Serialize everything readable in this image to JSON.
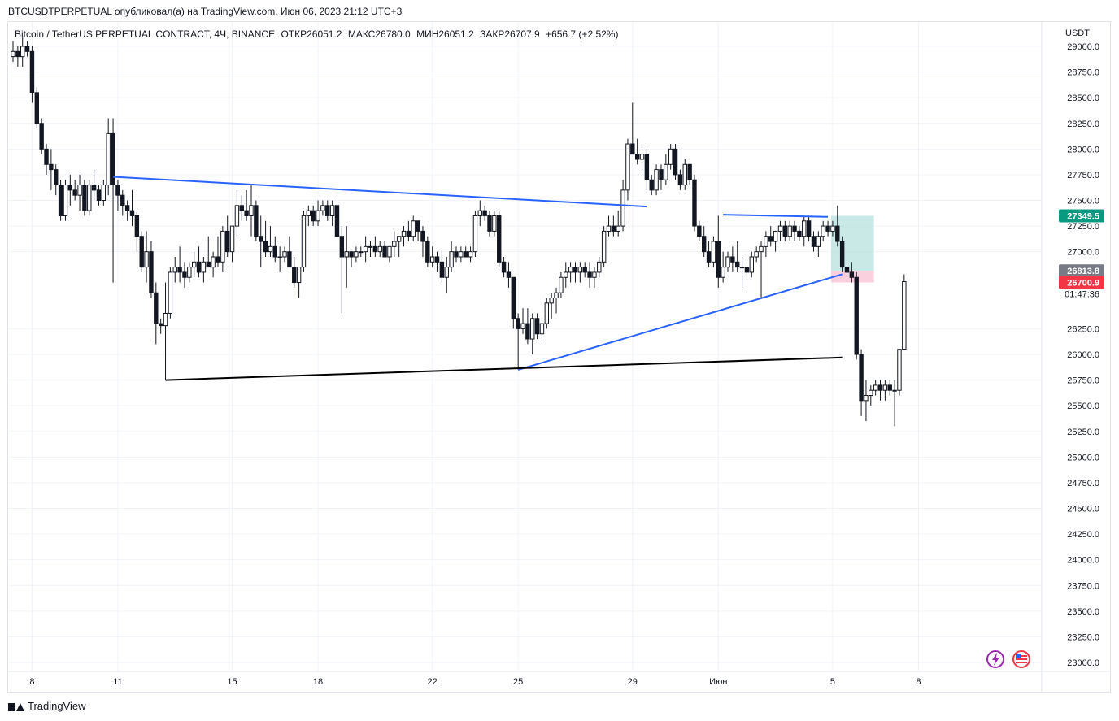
{
  "header": {
    "publish_line": "BTCUSDTPERPETUAL опубликовал(а) на TradingView.com, Июн 06, 2023 21:12 UTC+3"
  },
  "legend": {
    "symbol": "Bitcoin / TetherUS PERPETUAL CONTRACT, 4Ч, BINANCE",
    "open": "ОТКР26051.2",
    "high": "МАКС26780.0",
    "low": "МИН26051.2",
    "close": "ЗАКР26707.9",
    "change": "+656.7 (+2.52%)"
  },
  "footer": {
    "brand": "TradingView"
  },
  "colors": {
    "bull_candle": "#ffffff",
    "bear_candle": "#131722",
    "trend_blue": "#2962ff",
    "trend_black": "#000000",
    "target_zone": "#b2dfdb",
    "stop_zone": "#f8bbd0",
    "green_label": "#089981",
    "gray_label": "#787b86",
    "red_label": "#f23645",
    "grid": "#f0f3fa"
  },
  "icons": [
    "lightning-icon",
    "us-flag-icon"
  ],
  "chart_data": {
    "type": "candlestick",
    "currency_label": "USDT",
    "ylim": [
      23000,
      29000
    ],
    "y_ticks": [
      {
        "v": 29000,
        "label": "29000.0"
      },
      {
        "v": 28750,
        "label": "28750.0"
      },
      {
        "v": 28500,
        "label": "28500.0"
      },
      {
        "v": 28250,
        "label": "28250.0"
      },
      {
        "v": 28000,
        "label": "28000.0"
      },
      {
        "v": 27750,
        "label": "27750.0"
      },
      {
        "v": 27500,
        "label": "27500.0"
      },
      {
        "v": 27250,
        "label": "27250.0"
      },
      {
        "v": 27000,
        "label": "27000.0"
      },
      {
        "v": 26250,
        "label": "26250.0"
      },
      {
        "v": 26000,
        "label": "26000.0"
      },
      {
        "v": 25750,
        "label": "25750.0"
      },
      {
        "v": 25500,
        "label": "25500.0"
      },
      {
        "v": 25250,
        "label": "25250.0"
      },
      {
        "v": 25000,
        "label": "25000.0"
      },
      {
        "v": 24750,
        "label": "24750.0"
      },
      {
        "v": 24500,
        "label": "24500.0"
      },
      {
        "v": 24250,
        "label": "24250.0"
      },
      {
        "v": 24000,
        "label": "24000.0"
      },
      {
        "v": 23750,
        "label": "23750.0"
      },
      {
        "v": 23500,
        "label": "23500.0"
      },
      {
        "v": 23250,
        "label": "23250.0"
      },
      {
        "v": 23000,
        "label": "23000.0"
      }
    ],
    "x_ticks": [
      {
        "i": 4,
        "label": "8"
      },
      {
        "i": 22,
        "label": "11"
      },
      {
        "i": 46,
        "label": "15"
      },
      {
        "i": 64,
        "label": "18"
      },
      {
        "i": 88,
        "label": "22"
      },
      {
        "i": 106,
        "label": "25"
      },
      {
        "i": 130,
        "label": "29"
      },
      {
        "i": 148,
        "label": "Июн"
      },
      {
        "i": 172,
        "label": "5"
      },
      {
        "i": 190,
        "label": "8"
      }
    ],
    "price_labels": [
      {
        "v": 27349.5,
        "label": "27349.5",
        "style": "green"
      },
      {
        "v": 26813.8,
        "label": "26813.8",
        "style": "gray"
      },
      {
        "v": 26707.9,
        "label": "26707.9",
        "style": "plain"
      },
      {
        "v": 26590,
        "label": "01:47:36",
        "style": "plain"
      },
      {
        "v": 26700.9,
        "label": "26700.9",
        "style": "red"
      }
    ],
    "candles": [
      [
        28900,
        29050,
        28850,
        28950
      ],
      [
        28950,
        29000,
        28800,
        28900
      ],
      [
        28900,
        29100,
        28800,
        29000
      ],
      [
        29000,
        29050,
        28900,
        28950
      ],
      [
        28950,
        29000,
        28450,
        28550
      ],
      [
        28550,
        28600,
        28200,
        28250
      ],
      [
        28250,
        28300,
        27950,
        28000
      ],
      [
        28000,
        28050,
        27750,
        27850
      ],
      [
        27850,
        28000,
        27600,
        27800
      ],
      [
        27800,
        27850,
        27550,
        27650
      ],
      [
        27650,
        27700,
        27300,
        27350
      ],
      [
        27350,
        27700,
        27300,
        27650
      ],
      [
        27650,
        27750,
        27450,
        27600
      ],
      [
        27600,
        27700,
        27500,
        27550
      ],
      [
        27550,
        27750,
        27400,
        27650
      ],
      [
        27650,
        27700,
        27350,
        27400
      ],
      [
        27400,
        27700,
        27350,
        27650
      ],
      [
        27650,
        27800,
        27500,
        27600
      ],
      [
        27600,
        27650,
        27450,
        27500
      ],
      [
        27500,
        27700,
        27450,
        27650
      ],
      [
        27650,
        28300,
        27550,
        28150
      ],
      [
        28150,
        28300,
        26700,
        27650
      ],
      [
        27650,
        27700,
        27400,
        27550
      ],
      [
        27550,
        27600,
        27350,
        27450
      ],
      [
        27450,
        27500,
        27300,
        27400
      ],
      [
        27400,
        27600,
        27250,
        27350
      ],
      [
        27350,
        27400,
        27000,
        27150
      ],
      [
        27150,
        27200,
        26800,
        26850
      ],
      [
        26850,
        27200,
        26700,
        27000
      ],
      [
        27000,
        27100,
        26550,
        26600
      ],
      [
        26600,
        26700,
        26100,
        26300
      ],
      [
        26300,
        26350,
        26200,
        26280
      ],
      [
        26280,
        26700,
        25750,
        26400
      ],
      [
        26400,
        26850,
        26350,
        26800
      ],
      [
        26800,
        26950,
        26700,
        26850
      ],
      [
        26850,
        27050,
        26700,
        26800
      ],
      [
        26800,
        26900,
        26650,
        26750
      ],
      [
        26750,
        26900,
        26700,
        26850
      ],
      [
        26850,
        27000,
        26750,
        26900
      ],
      [
        26900,
        27050,
        26750,
        26800
      ],
      [
        26800,
        26950,
        26700,
        26900
      ],
      [
        26900,
        27150,
        26850,
        26850
      ],
      [
        26850,
        27000,
        26750,
        26950
      ],
      [
        26950,
        27150,
        26850,
        26900
      ],
      [
        26900,
        27250,
        26800,
        27200
      ],
      [
        27200,
        27350,
        26950,
        27000
      ],
      [
        27000,
        27250,
        26900,
        27250
      ],
      [
        27250,
        27600,
        27150,
        27450
      ],
      [
        27450,
        27550,
        27300,
        27400
      ],
      [
        27400,
        27600,
        27300,
        27350
      ],
      [
        27350,
        27650,
        27150,
        27450
      ],
      [
        27450,
        27500,
        27100,
        27150
      ],
      [
        27150,
        27350,
        26850,
        27100
      ],
      [
        27100,
        27300,
        26950,
        27000
      ],
      [
        27000,
        27250,
        26950,
        27050
      ],
      [
        27050,
        27150,
        26900,
        26950
      ],
      [
        26950,
        27050,
        26800,
        26950
      ],
      [
        26950,
        27050,
        26900,
        27000
      ],
      [
        27000,
        27150,
        26850,
        26850
      ],
      [
        26850,
        26950,
        26650,
        26700
      ],
      [
        26700,
        26850,
        26550,
        26850
      ],
      [
        26850,
        27400,
        26800,
        27350
      ],
      [
        27350,
        27450,
        27250,
        27400
      ],
      [
        27400,
        27450,
        27250,
        27300
      ],
      [
        27300,
        27500,
        27250,
        27400
      ],
      [
        27400,
        27500,
        27350,
        27450
      ],
      [
        27450,
        27500,
        27300,
        27350
      ],
      [
        27350,
        27500,
        27250,
        27450
      ],
      [
        27450,
        27500,
        27150,
        27150
      ],
      [
        27150,
        27250,
        26400,
        26950
      ],
      [
        26950,
        27250,
        26650,
        27000
      ],
      [
        27000,
        27000,
        26850,
        26950
      ],
      [
        26950,
        27050,
        26900,
        27000
      ],
      [
        27000,
        27050,
        26950,
        27000
      ],
      [
        27000,
        27150,
        26900,
        27050
      ],
      [
        27050,
        27100,
        26950,
        27050
      ],
      [
        27050,
        27150,
        26950,
        27000
      ],
      [
        27000,
        27100,
        26950,
        27050
      ],
      [
        27050,
        27100,
        26950,
        26950
      ],
      [
        26950,
        27050,
        26900,
        27050
      ],
      [
        27050,
        27200,
        26950,
        27100
      ],
      [
        27100,
        27150,
        26950,
        27150
      ],
      [
        27150,
        27250,
        27050,
        27200
      ],
      [
        27200,
        27300,
        27100,
        27150
      ],
      [
        27150,
        27350,
        27100,
        27300
      ],
      [
        27300,
        27300,
        27100,
        27200
      ],
      [
        27200,
        27250,
        26950,
        27100
      ],
      [
        27100,
        27150,
        26850,
        26900
      ],
      [
        26900,
        27050,
        26850,
        26950
      ],
      [
        26950,
        27000,
        26800,
        26900
      ],
      [
        26900,
        27000,
        26700,
        26750
      ],
      [
        26750,
        26950,
        26600,
        26850
      ],
      [
        26850,
        27100,
        26800,
        27000
      ],
      [
        27000,
        27050,
        26900,
        26950
      ],
      [
        26950,
        27050,
        26900,
        27000
      ],
      [
        27000,
        27050,
        26950,
        26950
      ],
      [
        26950,
        27050,
        26900,
        27000
      ],
      [
        27000,
        27400,
        26950,
        27350
      ],
      [
        27350,
        27500,
        27250,
        27400
      ],
      [
        27400,
        27450,
        27300,
        27350
      ],
      [
        27350,
        27400,
        27150,
        27200
      ],
      [
        27200,
        27400,
        27150,
        27350
      ],
      [
        27350,
        27400,
        26850,
        26900
      ],
      [
        26900,
        26950,
        26750,
        26800
      ],
      [
        26800,
        26900,
        26650,
        26750
      ],
      [
        26750,
        26750,
        26250,
        26350
      ],
      [
        26350,
        26400,
        25850,
        26250
      ],
      [
        26250,
        26450,
        26200,
        26300
      ],
      [
        26300,
        26450,
        26100,
        26150
      ],
      [
        26150,
        26400,
        26000,
        26350
      ],
      [
        26350,
        26400,
        26150,
        26200
      ],
      [
        26200,
        26350,
        26100,
        26300
      ],
      [
        26300,
        26550,
        26250,
        26500
      ],
      [
        26500,
        26600,
        26350,
        26550
      ],
      [
        26550,
        26650,
        26400,
        26600
      ],
      [
        26600,
        26800,
        26550,
        26750
      ],
      [
        26750,
        26900,
        26650,
        26800
      ],
      [
        26800,
        26900,
        26700,
        26850
      ],
      [
        26850,
        26900,
        26700,
        26800
      ],
      [
        26800,
        26900,
        26700,
        26850
      ],
      [
        26850,
        26900,
        26750,
        26800
      ],
      [
        26800,
        26900,
        26650,
        26750
      ],
      [
        26750,
        26850,
        26650,
        26800
      ],
      [
        26800,
        26950,
        26750,
        26900
      ],
      [
        26900,
        27250,
        26850,
        27200
      ],
      [
        27200,
        27350,
        27150,
        27250
      ],
      [
        27250,
        27350,
        27150,
        27200
      ],
      [
        27200,
        27400,
        27150,
        27250
      ],
      [
        27250,
        27700,
        27200,
        27600
      ],
      [
        27600,
        28100,
        27500,
        28050
      ],
      [
        28050,
        28450,
        27950,
        27950
      ],
      [
        27950,
        28100,
        27850,
        27900
      ],
      [
        27900,
        28000,
        27750,
        27950
      ],
      [
        27950,
        28000,
        27600,
        27700
      ],
      [
        27700,
        27750,
        27550,
        27600
      ],
      [
        27600,
        27850,
        27550,
        27800
      ],
      [
        27800,
        27850,
        27600,
        27700
      ],
      [
        27700,
        27950,
        27650,
        27850
      ],
      [
        27850,
        28050,
        27800,
        28000
      ],
      [
        28000,
        28050,
        27700,
        27750
      ],
      [
        27750,
        27800,
        27600,
        27650
      ],
      [
        27650,
        27900,
        27600,
        27850
      ],
      [
        27850,
        27850,
        27650,
        27700
      ],
      [
        27700,
        27750,
        27200,
        27250
      ],
      [
        27250,
        27300,
        27100,
        27150
      ],
      [
        27150,
        27250,
        26950,
        27000
      ],
      [
        27000,
        27100,
        26850,
        26900
      ],
      [
        26900,
        27150,
        26850,
        27100
      ],
      [
        27100,
        27350,
        26650,
        26750
      ],
      [
        26750,
        27000,
        26700,
        26850
      ],
      [
        26850,
        27000,
        26800,
        26950
      ],
      [
        26950,
        27050,
        26800,
        26900
      ],
      [
        26900,
        27100,
        26800,
        26850
      ],
      [
        26850,
        26950,
        26650,
        26850
      ],
      [
        26850,
        26900,
        26750,
        26800
      ],
      [
        26800,
        27000,
        26750,
        26950
      ],
      [
        26950,
        27050,
        26900,
        27000
      ],
      [
        27000,
        27100,
        26550,
        27050
      ],
      [
        27050,
        27200,
        26950,
        27150
      ],
      [
        27150,
        27250,
        27050,
        27100
      ],
      [
        27100,
        27200,
        27000,
        27200
      ],
      [
        27200,
        27300,
        27100,
        27250
      ],
      [
        27250,
        27300,
        27100,
        27150
      ],
      [
        27150,
        27300,
        27100,
        27250
      ],
      [
        27250,
        27300,
        27100,
        27200
      ],
      [
        27200,
        27250,
        27100,
        27150
      ],
      [
        27150,
        27350,
        27050,
        27300
      ],
      [
        27300,
        27350,
        27100,
        27150
      ],
      [
        27150,
        27200,
        27000,
        27050
      ],
      [
        27050,
        27200,
        26950,
        27150
      ],
      [
        27150,
        27300,
        27100,
        27250
      ],
      [
        27250,
        27300,
        27150,
        27200
      ],
      [
        27200,
        27300,
        27150,
        27250
      ],
      [
        27250,
        27450,
        27050,
        27100
      ],
      [
        27100,
        27150,
        26800,
        26850
      ],
      [
        26850,
        26900,
        26750,
        26800
      ],
      [
        26800,
        26900,
        26700,
        26750
      ],
      [
        26750,
        26800,
        25950,
        26000
      ],
      [
        26000,
        26050,
        25400,
        25550
      ],
      [
        25550,
        25750,
        25350,
        25600
      ],
      [
        25600,
        25700,
        25500,
        25650
      ],
      [
        25650,
        25750,
        25600,
        25700
      ],
      [
        25700,
        25750,
        25550,
        25650
      ],
      [
        25650,
        25750,
        25550,
        25700
      ],
      [
        25700,
        25750,
        25600,
        25650
      ],
      [
        25650,
        25750,
        25300,
        25650
      ],
      [
        25650,
        26050,
        25600,
        26050
      ],
      [
        26051.2,
        26780,
        26051.2,
        26707.9
      ]
    ],
    "trendlines": [
      {
        "from": [
          21,
          27730
        ],
        "to": [
          133,
          27440
        ],
        "color": "blue",
        "width": 2
      },
      {
        "from": [
          149,
          27360
        ],
        "to": [
          171,
          27340
        ],
        "color": "blue",
        "width": 2
      },
      {
        "from": [
          106,
          25850
        ],
        "to": [
          174,
          26780
        ],
        "color": "blue",
        "width": 2
      },
      {
        "from": [
          32,
          25750
        ],
        "to": [
          174,
          25970
        ],
        "color": "black",
        "width": 2
      }
    ],
    "zones": [
      {
        "i_from": 172,
        "i_to": 181,
        "v_from": 26813.8,
        "v_to": 27349.5,
        "color": "target"
      },
      {
        "i_from": 172,
        "i_to": 181,
        "v_from": 26700.9,
        "v_to": 26813.8,
        "color": "stop"
      }
    ]
  }
}
